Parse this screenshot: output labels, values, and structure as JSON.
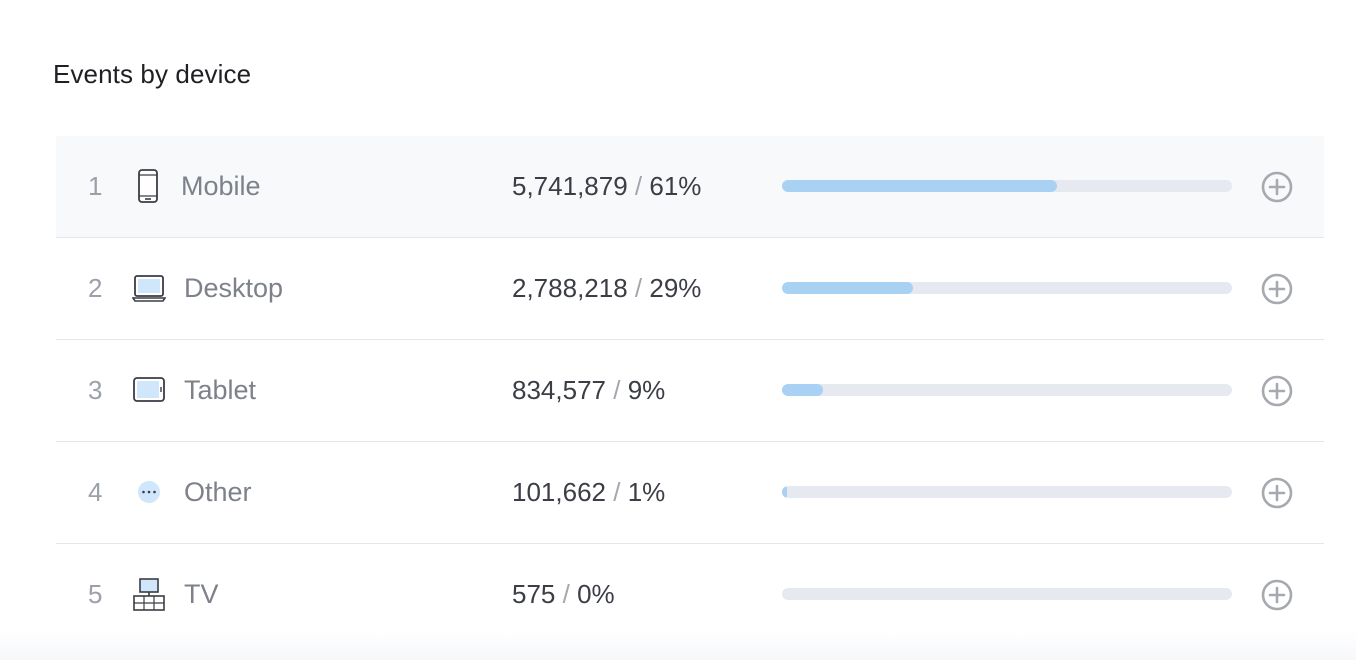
{
  "panel": {
    "title": "Events by device"
  },
  "rows": [
    {
      "rank": "1",
      "icon": "mobile-icon",
      "name": "Mobile",
      "count": "5,741,879",
      "separator": "/",
      "percent": "61%",
      "share": 0.61,
      "add_icon": "plus-circle-icon"
    },
    {
      "rank": "2",
      "icon": "desktop-icon",
      "name": "Desktop",
      "count": "2,788,218",
      "separator": "/",
      "percent": "29%",
      "share": 0.29,
      "add_icon": "plus-circle-icon"
    },
    {
      "rank": "3",
      "icon": "tablet-icon",
      "name": "Tablet",
      "count": "834,577",
      "separator": "/",
      "percent": "9%",
      "share": 0.09,
      "add_icon": "plus-circle-icon"
    },
    {
      "rank": "4",
      "icon": "other-icon",
      "name": "Other",
      "count": "101,662",
      "separator": "/",
      "percent": "1%",
      "share": 0.01,
      "add_icon": "plus-circle-icon"
    },
    {
      "rank": "5",
      "icon": "tv-icon",
      "name": "TV",
      "count": "575",
      "separator": "/",
      "percent": "0%",
      "share": 0.0,
      "add_icon": "plus-circle-icon"
    }
  ],
  "colors": {
    "bar_fill": "#a8d1f4",
    "bar_track": "#e6eaf0",
    "icon_fill": "#cfe6fb",
    "icon_stroke": "#3a3d44",
    "add_icon": "#a6a9b0"
  }
}
